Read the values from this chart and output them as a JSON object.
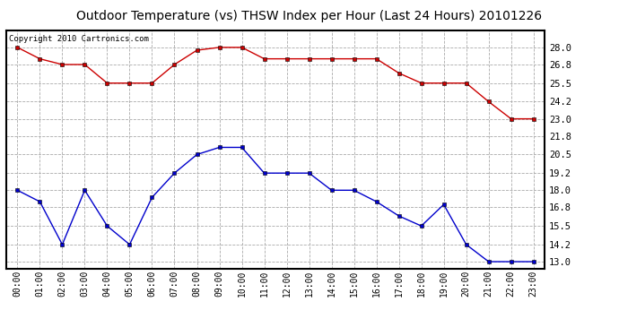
{
  "title": "Outdoor Temperature (vs) THSW Index per Hour (Last 24 Hours) 20101226",
  "copyright_text": "Copyright 2010 Cartronics.com",
  "hours": [
    "00:00",
    "01:00",
    "02:00",
    "03:00",
    "04:00",
    "05:00",
    "06:00",
    "07:00",
    "08:00",
    "09:00",
    "10:00",
    "11:00",
    "12:00",
    "13:00",
    "14:00",
    "15:00",
    "16:00",
    "17:00",
    "18:00",
    "19:00",
    "20:00",
    "21:00",
    "22:00",
    "23:00"
  ],
  "red_data": [
    28.0,
    27.2,
    26.8,
    26.8,
    25.5,
    25.5,
    25.5,
    26.8,
    27.8,
    28.0,
    28.0,
    27.2,
    27.2,
    27.2,
    27.2,
    27.2,
    27.2,
    26.2,
    25.5,
    25.5,
    25.5,
    24.2,
    23.0,
    23.0
  ],
  "blue_data": [
    18.0,
    17.2,
    14.2,
    18.0,
    15.5,
    14.2,
    17.5,
    19.2,
    20.5,
    21.0,
    21.0,
    19.2,
    19.2,
    19.2,
    18.0,
    18.0,
    17.2,
    16.2,
    15.5,
    17.0,
    14.2,
    13.0,
    13.0,
    13.0
  ],
  "red_color": "#cc0000",
  "blue_color": "#0000cc",
  "bg_color": "#ffffff",
  "grid_color": "#aaaaaa",
  "ylim": [
    12.5,
    29.2
  ],
  "yticks": [
    13.0,
    14.2,
    15.5,
    16.8,
    18.0,
    19.2,
    20.5,
    21.8,
    23.0,
    24.2,
    25.5,
    26.8,
    28.0
  ],
  "title_fontsize": 10,
  "copyright_fontsize": 6.5,
  "marker": "s",
  "marker_size": 2.5,
  "line_width": 1.0,
  "border_color": "#000000"
}
